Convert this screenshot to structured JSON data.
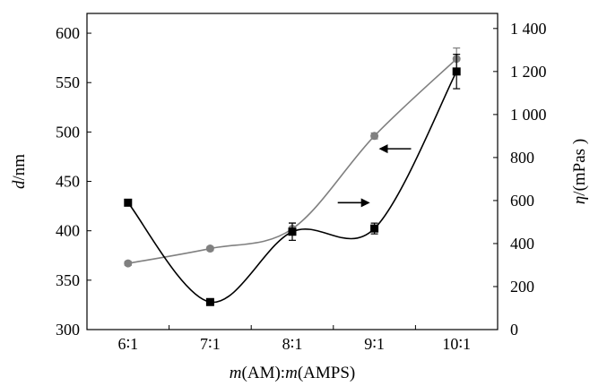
{
  "chart_data": {
    "type": "line",
    "categories": [
      "6∶1",
      "7∶1",
      "8∶1",
      "9∶1",
      "10∶1"
    ],
    "xlabel_parts": [
      {
        "text": "m",
        "italic": true
      },
      {
        "text": "(AM):",
        "italic": false
      },
      {
        "text": "m",
        "italic": true
      },
      {
        "text": "(AMPS)",
        "italic": false
      }
    ],
    "ylabel_left_parts": [
      {
        "text": "d",
        "italic": true
      },
      {
        "text": "/nm",
        "italic": false
      }
    ],
    "ylabel_right_parts": [
      {
        "text": "η",
        "italic": true
      },
      {
        "text": "/(mPas )",
        "italic": false
      }
    ],
    "y_left": {
      "lim": [
        300,
        620
      ],
      "ticks": [
        300,
        350,
        400,
        450,
        500,
        550,
        600
      ]
    },
    "y_right": {
      "lim": [
        0,
        1470
      ],
      "ticks": [
        0,
        200,
        400,
        600,
        800,
        1000,
        1200,
        1400
      ]
    },
    "y_right_tick_labels": [
      "0",
      "200",
      "400",
      "600",
      "800",
      "1 000",
      "1 200",
      "1 400"
    ],
    "series": [
      {
        "axis": "left",
        "marker": "circle",
        "color": "#808080",
        "values": [
          367,
          382,
          402,
          496,
          574
        ],
        "errors": [
          2,
          2,
          6,
          3,
          11
        ]
      },
      {
        "axis": "right",
        "marker": "square",
        "color": "#000000",
        "values": [
          590,
          128,
          455,
          470,
          1200
        ],
        "errors": [
          15,
          5,
          40,
          25,
          80
        ]
      }
    ],
    "annotations": [
      {
        "direction": "left",
        "points_to_axis": "left",
        "x": 3.25,
        "y_left": 483
      },
      {
        "direction": "right",
        "points_to_axis": "right",
        "x": 2.75,
        "y_right": 590
      }
    ],
    "grid": false
  }
}
